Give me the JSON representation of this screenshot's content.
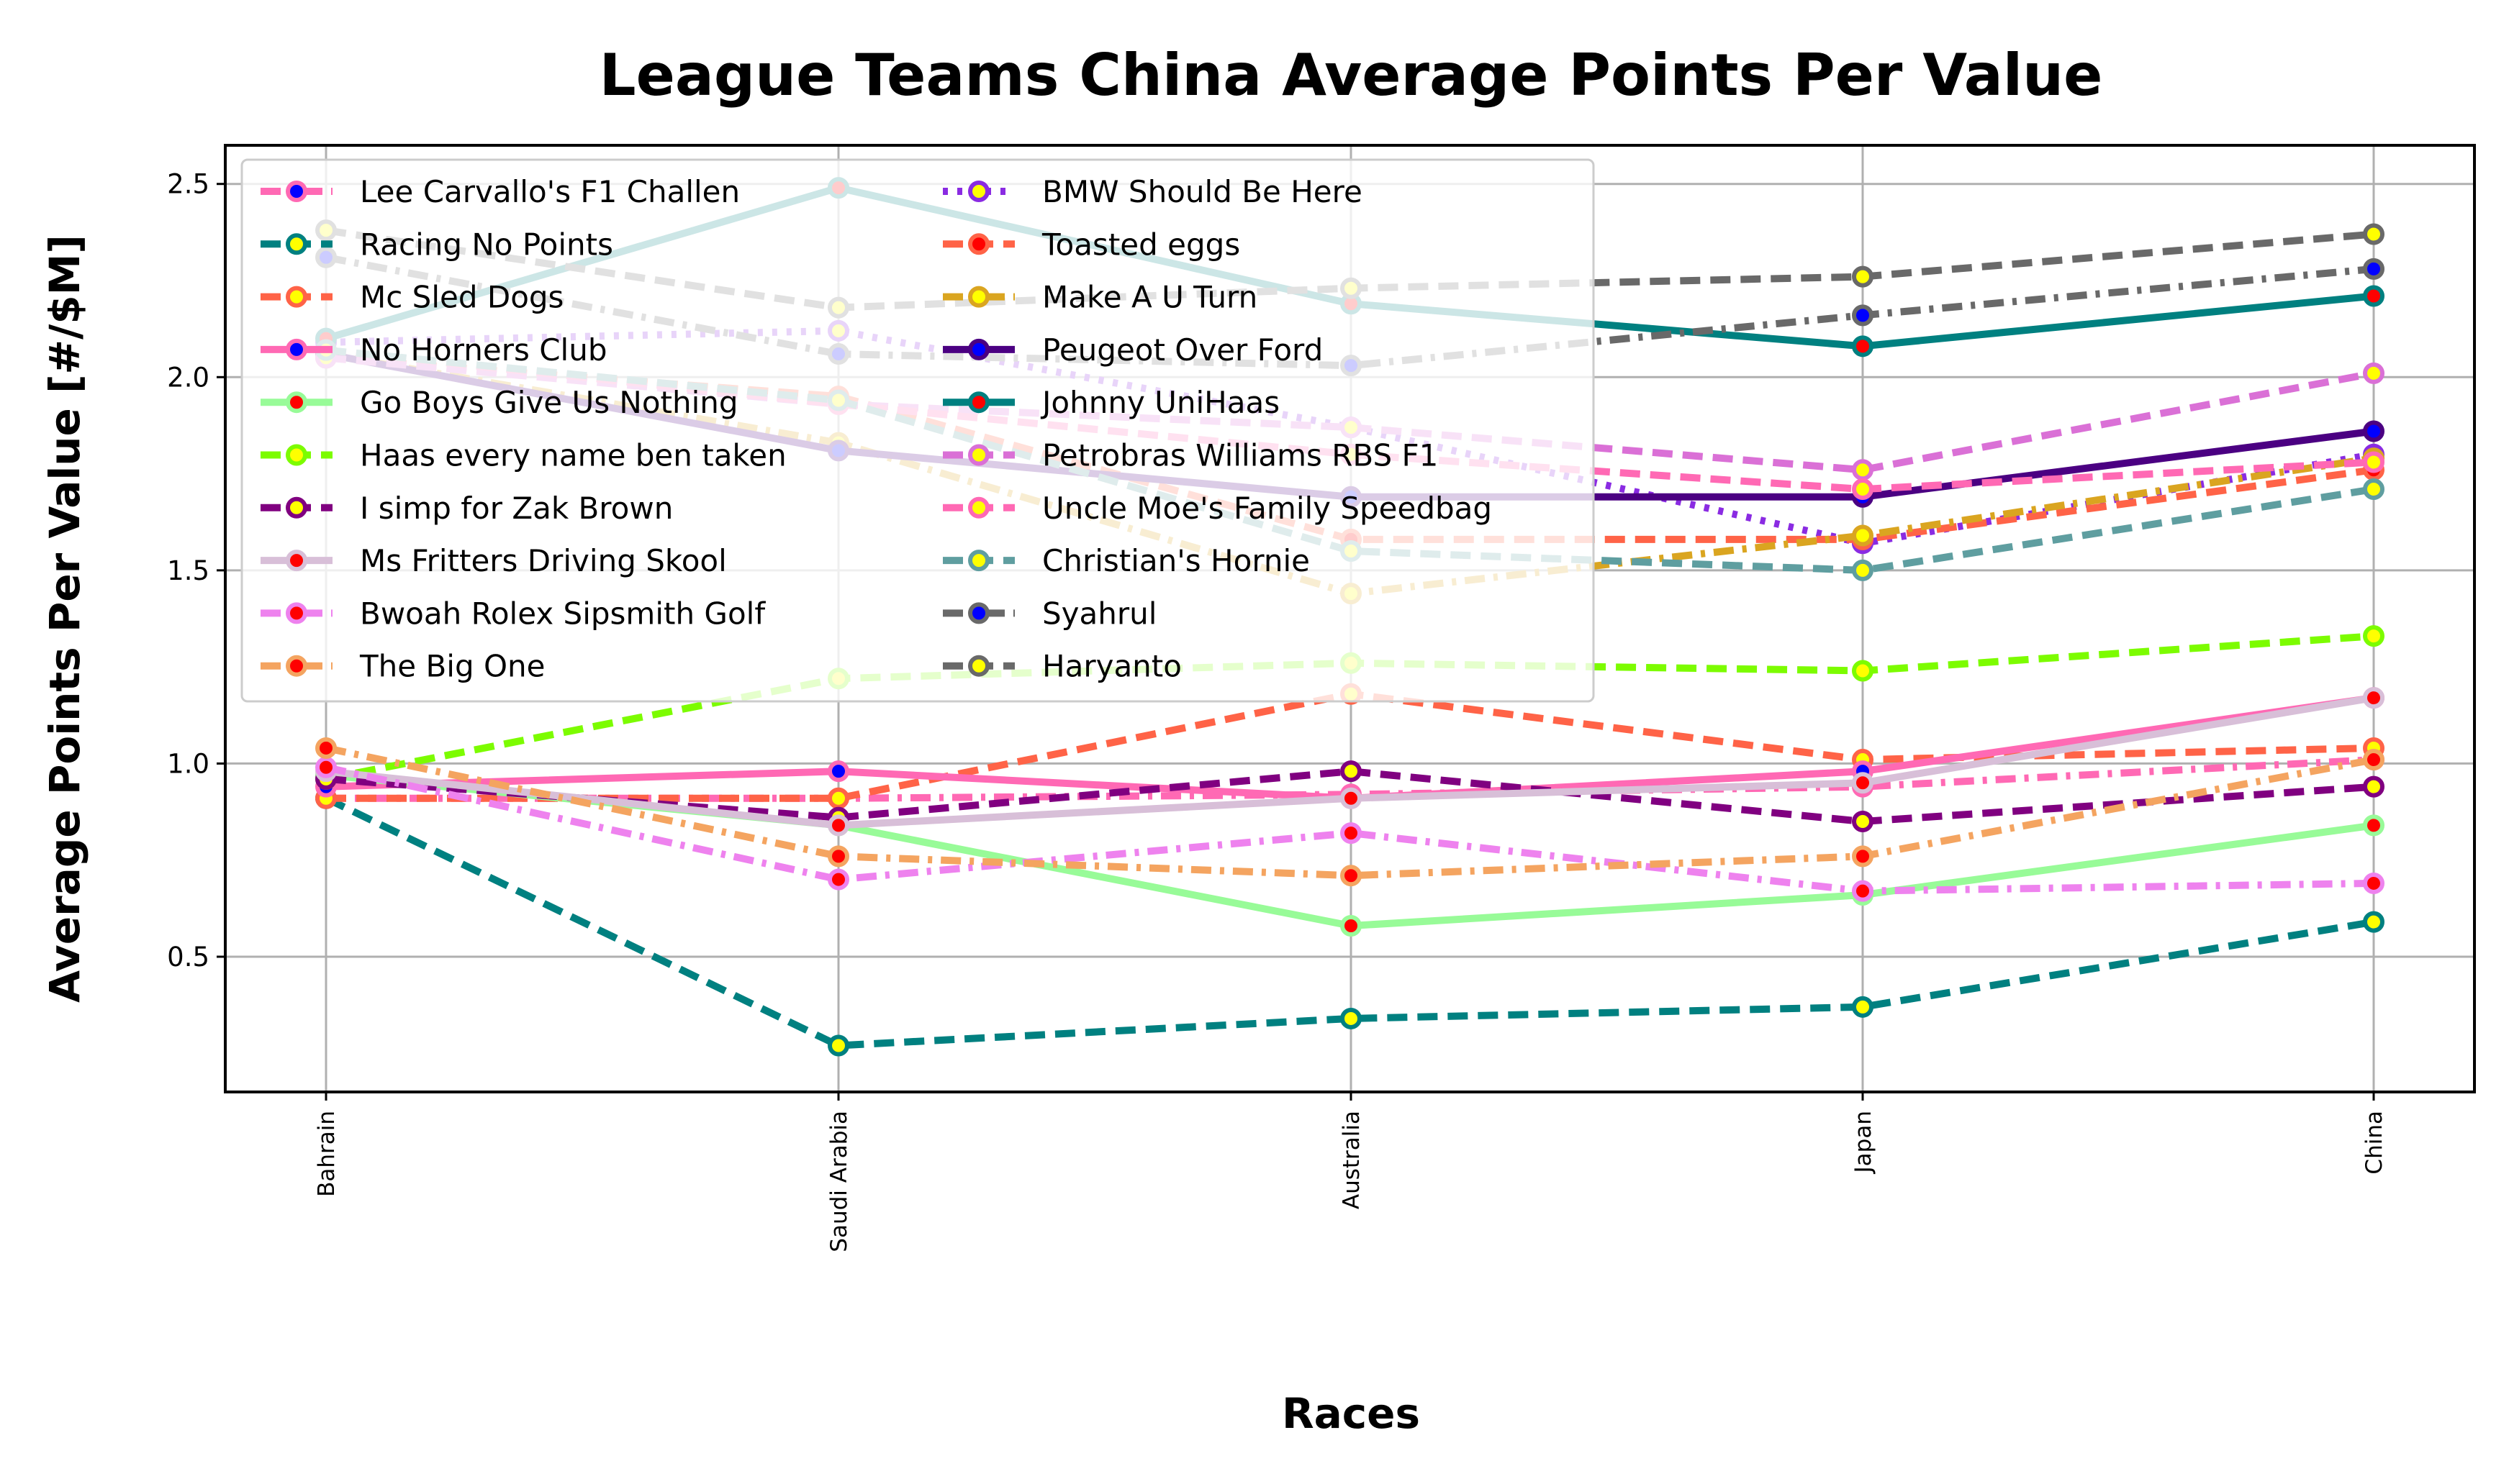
{
  "chart_data": {
    "type": "line",
    "title": "League Teams China Average Points Per Value",
    "xlabel": "Races",
    "ylabel": "Average Points Per Value [#/$M]",
    "categories": [
      "Bahrain",
      "Saudi Arabia",
      "Australia",
      "Japan",
      "China"
    ],
    "ylim": [
      0.15,
      2.6
    ],
    "yticks": [
      0.5,
      1.0,
      1.5,
      2.0,
      2.5
    ],
    "ytick_labels": [
      "0.5",
      "1.0",
      "1.5",
      "2.0",
      "2.5"
    ],
    "grid": true,
    "legend_position": "upper left",
    "series": [
      {
        "name": "Lee Carvallo's F1 Challen",
        "values": [
          0.91,
          0.91,
          0.92,
          0.94,
          1.01
        ],
        "color": "#ff69b4",
        "dash": "dashdot",
        "marker_fill": "#0000ff",
        "marker_edge": "#ff69b4"
      },
      {
        "name": "Racing No Points",
        "values": [
          0.91,
          0.27,
          0.34,
          0.37,
          0.59
        ],
        "color": "#008080",
        "dash": "dashed",
        "marker_fill": "#ffff00",
        "marker_edge": "#008080"
      },
      {
        "name": "Mc Sled Dogs",
        "values": [
          0.91,
          0.91,
          1.18,
          1.01,
          1.04
        ],
        "color": "#ff6347",
        "dash": "dashed",
        "marker_fill": "#ffff00",
        "marker_edge": "#ff6347"
      },
      {
        "name": "No Horners Club",
        "values": [
          0.94,
          0.98,
          0.91,
          0.98,
          1.17
        ],
        "color": "#ff69b4",
        "dash": "solid",
        "marker_fill": "#0000ff",
        "marker_edge": "#ff69b4"
      },
      {
        "name": "Go Boys Give Us Nothing",
        "values": [
          0.97,
          0.84,
          0.58,
          0.66,
          0.84
        ],
        "color": "#98fb98",
        "dash": "solid",
        "marker_fill": "#ff0000",
        "marker_edge": "#98fb98"
      },
      {
        "name": "Haas every name ben taken",
        "values": [
          0.96,
          1.22,
          1.26,
          1.24,
          1.33
        ],
        "color": "#7cfc00",
        "dash": "dashed",
        "marker_fill": "#ffff00",
        "marker_edge": "#7cfc00"
      },
      {
        "name": "I simp for Zak Brown",
        "values": [
          0.96,
          0.86,
          0.98,
          0.85,
          0.94
        ],
        "color": "#800080",
        "dash": "dashed",
        "marker_fill": "#ffff00",
        "marker_edge": "#800080"
      },
      {
        "name": "Ms Fritters Driving Skool",
        "values": [
          0.98,
          0.84,
          0.91,
          0.95,
          1.17
        ],
        "color": "#d8bfd8",
        "dash": "solid",
        "marker_fill": "#ff0000",
        "marker_edge": "#d8bfd8"
      },
      {
        "name": "Bwoah Rolex Sipsmith Golf",
        "values": [
          0.99,
          0.7,
          0.82,
          0.67,
          0.69
        ],
        "color": "#ee82ee",
        "dash": "dashdot",
        "marker_fill": "#ff0000",
        "marker_edge": "#ee82ee"
      },
      {
        "name": "The Big One",
        "values": [
          1.04,
          0.76,
          0.71,
          0.76,
          1.01
        ],
        "color": "#f4a460",
        "dash": "dashdot",
        "marker_fill": "#ff0000",
        "marker_edge": "#f4a460"
      },
      {
        "name": "BMW Should Be Here",
        "values": [
          2.09,
          2.12,
          1.87,
          1.57,
          1.8
        ],
        "color": "#8a2be2",
        "dash": "dotted",
        "marker_fill": "#ffff00",
        "marker_edge": "#8a2be2"
      },
      {
        "name": "Toasted eggs",
        "values": [
          2.05,
          1.95,
          1.58,
          1.58,
          1.76
        ],
        "color": "#ff6347",
        "dash": "dashed",
        "marker_fill": "#ff0000",
        "marker_edge": "#ff6347"
      },
      {
        "name": "Make A U Turn",
        "values": [
          2.06,
          1.83,
          1.44,
          1.59,
          1.79
        ],
        "color": "#daa520",
        "dash": "dashdot",
        "marker_fill": "#ffff00",
        "marker_edge": "#daa520"
      },
      {
        "name": "Peugeot Over Ford",
        "values": [
          2.06,
          1.81,
          1.69,
          1.69,
          1.86
        ],
        "color": "#4b0082",
        "dash": "solid",
        "marker_fill": "#0000ff",
        "marker_edge": "#4b0082"
      },
      {
        "name": "Johnny UniHaas",
        "values": [
          2.1,
          2.49,
          2.19,
          2.08,
          2.21
        ],
        "color": "#008080",
        "dash": "solid",
        "marker_fill": "#ff0000",
        "marker_edge": "#008080"
      },
      {
        "name": "Petrobras Williams RBS F1",
        "values": [
          2.05,
          1.93,
          1.87,
          1.76,
          2.01
        ],
        "color": "#da70d6",
        "dash": "dashed",
        "marker_fill": "#ffff00",
        "marker_edge": "#da70d6"
      },
      {
        "name": "Uncle Moe's Family Speedbag",
        "values": [
          2.07,
          1.93,
          1.8,
          1.71,
          1.78
        ],
        "color": "#ff69b4",
        "dash": "dashed",
        "marker_fill": "#ffff00",
        "marker_edge": "#ff69b4"
      },
      {
        "name": "Christian's Hornie",
        "values": [
          2.07,
          1.94,
          1.55,
          1.5,
          1.71
        ],
        "color": "#5f9ea0",
        "dash": "dashed",
        "marker_fill": "#ffff00",
        "marker_edge": "#5f9ea0"
      },
      {
        "name": "Syahrul",
        "values": [
          2.31,
          2.06,
          2.03,
          2.16,
          2.28
        ],
        "color": "#696969",
        "dash": "dashdot",
        "marker_fill": "#0000ff",
        "marker_edge": "#696969"
      },
      {
        "name": "Haryanto",
        "values": [
          2.38,
          2.18,
          2.23,
          2.26,
          2.37
        ],
        "color": "#696969",
        "dash": "dashed",
        "marker_fill": "#ffff00",
        "marker_edge": "#696969"
      }
    ]
  }
}
